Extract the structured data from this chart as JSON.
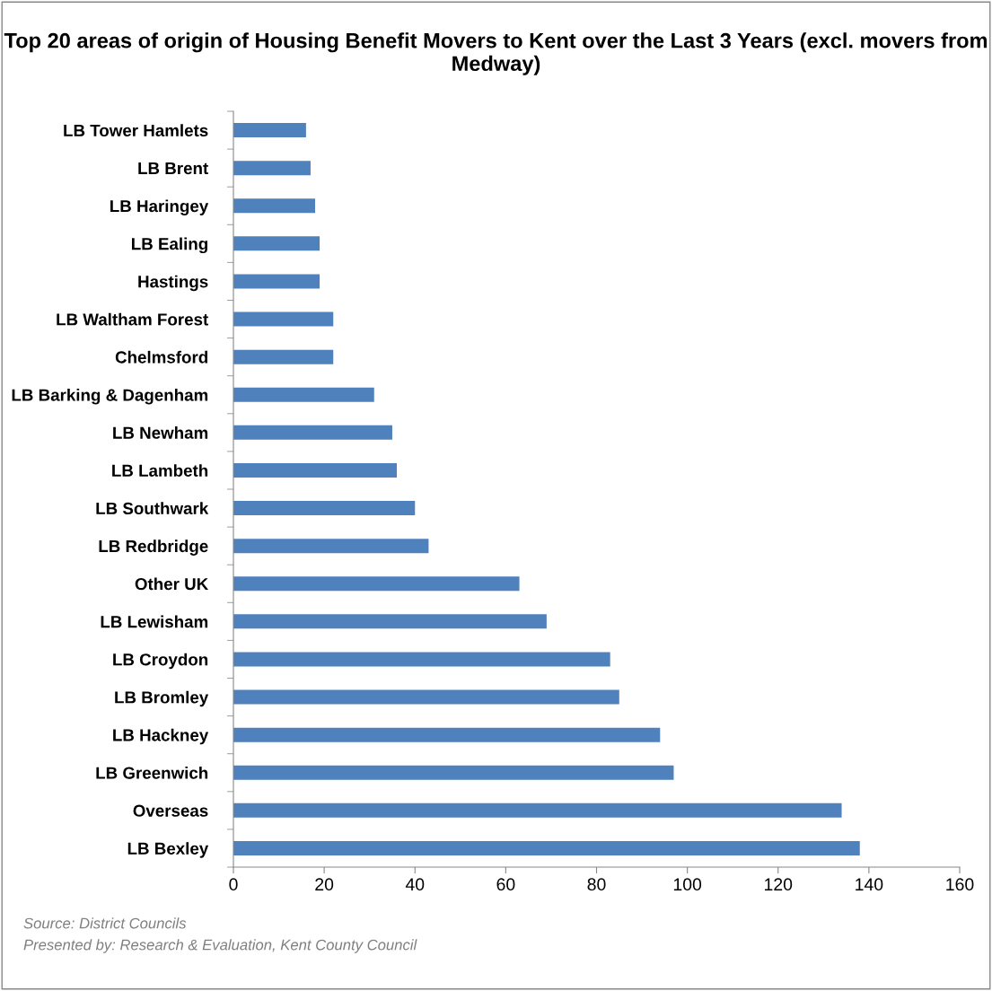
{
  "chart_data": {
    "type": "bar",
    "orientation": "horizontal",
    "title": "Top 20 areas of origin of Housing Benefit Movers to Kent over the Last 3 Years (excl. movers from Medway)",
    "categories": [
      "LB Tower Hamlets",
      "LB Brent",
      "LB Haringey",
      "LB Ealing",
      "Hastings",
      "LB Waltham Forest",
      "Chelmsford",
      "LB Barking & Dagenham",
      "LB Newham",
      "LB Lambeth",
      "LB Southwark",
      "LB Redbridge",
      "Other UK",
      "LB Lewisham",
      "LB Croydon",
      "LB Bromley",
      "LB Hackney",
      "LB Greenwich",
      "Overseas",
      "LB Bexley"
    ],
    "values": [
      16,
      17,
      18,
      19,
      19,
      22,
      22,
      31,
      35,
      36,
      40,
      43,
      63,
      69,
      83,
      85,
      94,
      97,
      134,
      138
    ],
    "color": "#4f81bd",
    "xlim": [
      0,
      160
    ],
    "xticks": [
      0,
      20,
      40,
      60,
      80,
      100,
      120,
      140,
      160
    ],
    "grid": false,
    "legend": false,
    "annotations": [
      "Source: District Councils",
      "Presented by: Research & Evaluation, Kent County Council"
    ]
  }
}
